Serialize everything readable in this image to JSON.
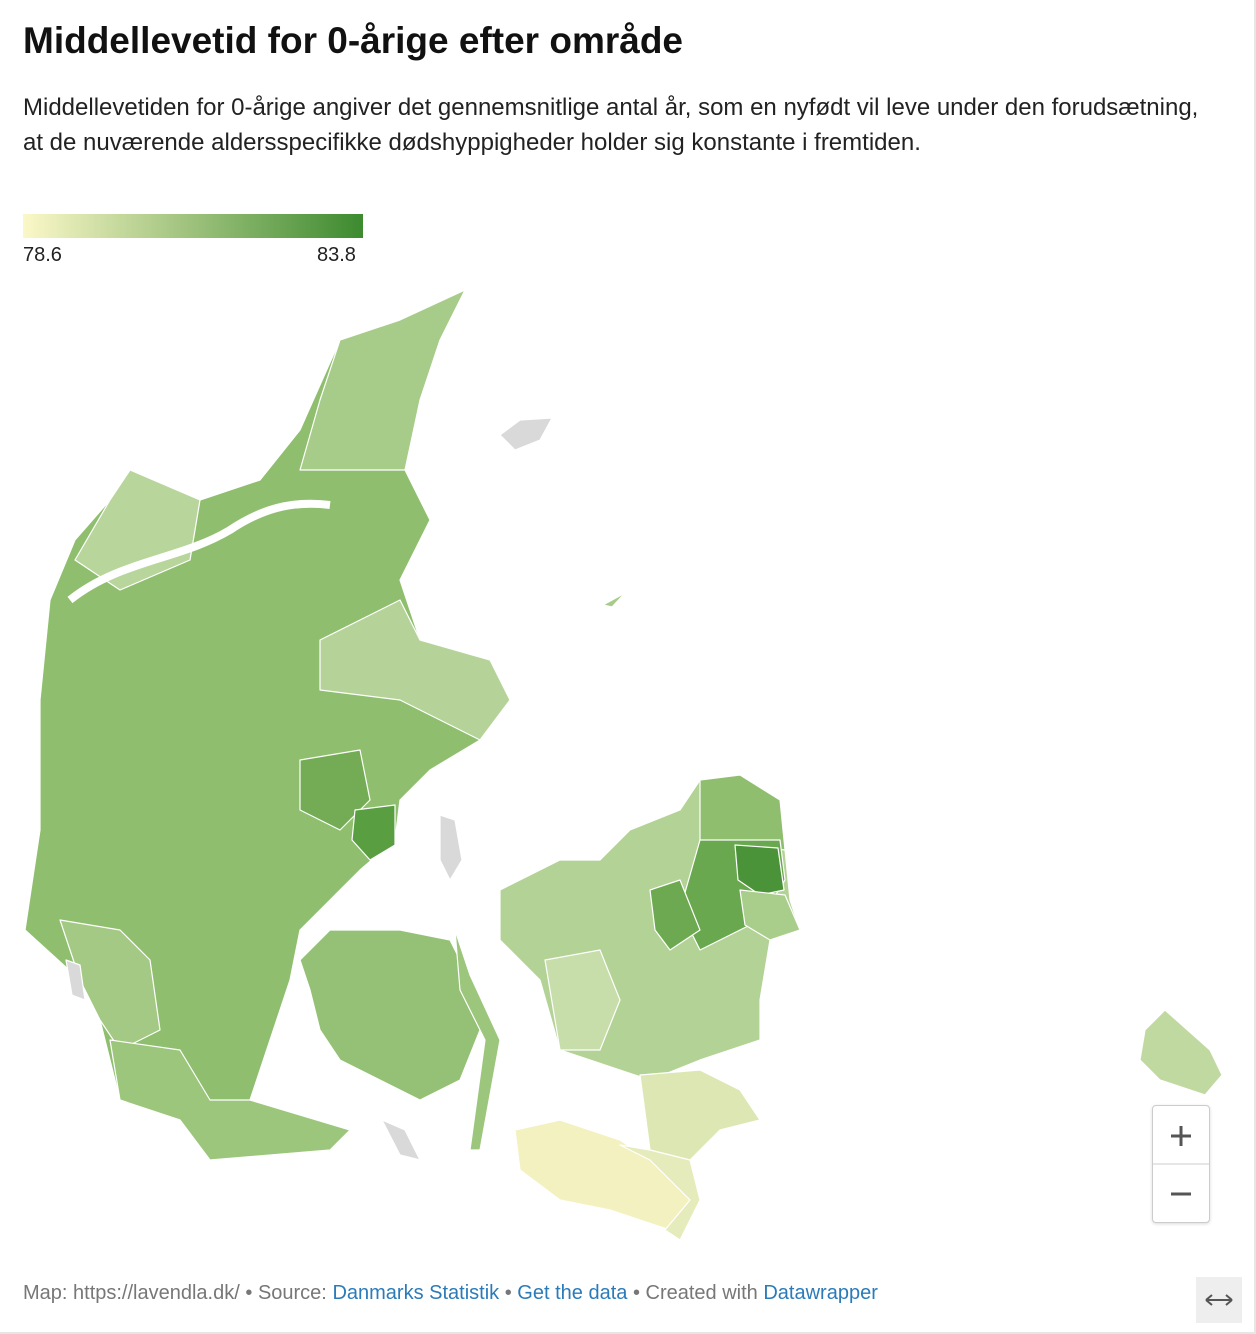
{
  "header": {
    "title": "Middellevetid for 0-årige efter område",
    "description": "Middellevetiden for 0-årige angiver det gennemsnitlige antal år, som en nyfødt vil leve under den forudsætning, at de nuværende aldersspecifikke dødshyppigheder holder sig konstante i fremtiden."
  },
  "legend": {
    "min": 78.6,
    "max": 83.8,
    "color_min": "#fbf8c8",
    "color_max": "#3d8a2f"
  },
  "footer": {
    "map_label": "Map: https://lavendla.dk/",
    "separator": "•",
    "source_label": "Source:",
    "source": "Danmarks Statistik",
    "get_data": "Get the data",
    "created_label": "Created with",
    "created_with": "Datawrapper"
  }
}
